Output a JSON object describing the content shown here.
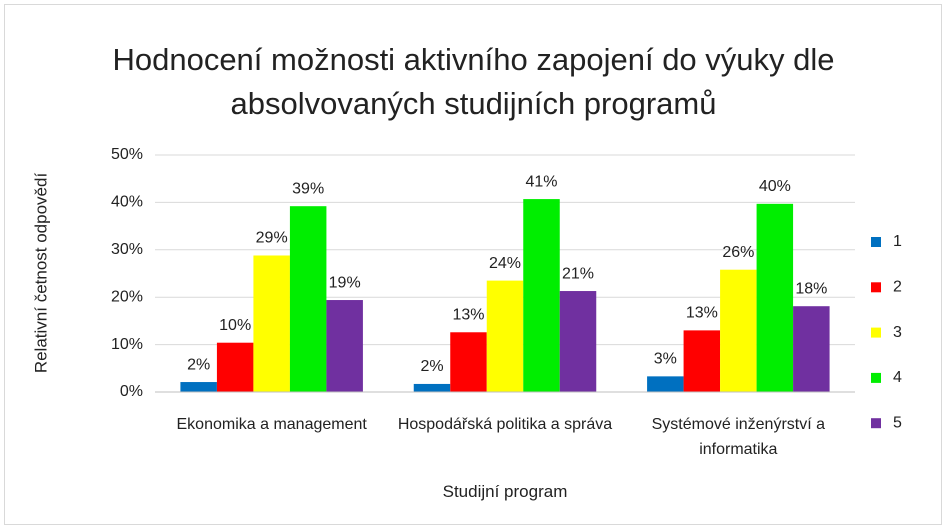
{
  "chart_data": {
    "type": "bar",
    "title": "Hodnocení možnosti aktivního zapojení do výuky dle absolvovaných studijních programů",
    "x_label": "Studijní program",
    "y_label": "Relativní četnost odpovědí",
    "categories": [
      "Ekonomika a management",
      "Hospodářská politika a správa",
      "Systémové inženýrství a informatika"
    ],
    "series": [
      {
        "name": "1",
        "color": "#0070c0",
        "values": [
          2.1,
          1.7,
          3.3
        ],
        "value_labels": [
          "2%",
          "2%",
          "3%"
        ]
      },
      {
        "name": "2",
        "color": "#ff0000",
        "values": [
          10.4,
          12.6,
          13.0
        ],
        "value_labels": [
          "10%",
          "13%",
          "13%"
        ]
      },
      {
        "name": "3",
        "color": "#ffff00",
        "values": [
          28.8,
          23.5,
          25.8
        ],
        "value_labels": [
          "29%",
          "24%",
          "26%"
        ]
      },
      {
        "name": "4",
        "color": "#00ee00",
        "values": [
          39.2,
          40.7,
          39.7
        ],
        "value_labels": [
          "39%",
          "41%",
          "40%"
        ]
      },
      {
        "name": "5",
        "color": "#7030a0",
        "values": [
          19.4,
          21.3,
          18.1
        ],
        "value_labels": [
          "19%",
          "21%",
          "18%"
        ]
      }
    ],
    "ylim": [
      0,
      50
    ],
    "yticks": [
      {
        "value": 0,
        "label": "0%"
      },
      {
        "value": 10,
        "label": "10%"
      },
      {
        "value": 20,
        "label": "20%"
      },
      {
        "value": 30,
        "label": "30%"
      },
      {
        "value": 40,
        "label": "40%"
      },
      {
        "value": 50,
        "label": "50%"
      }
    ],
    "grid": true,
    "legend": "right"
  }
}
